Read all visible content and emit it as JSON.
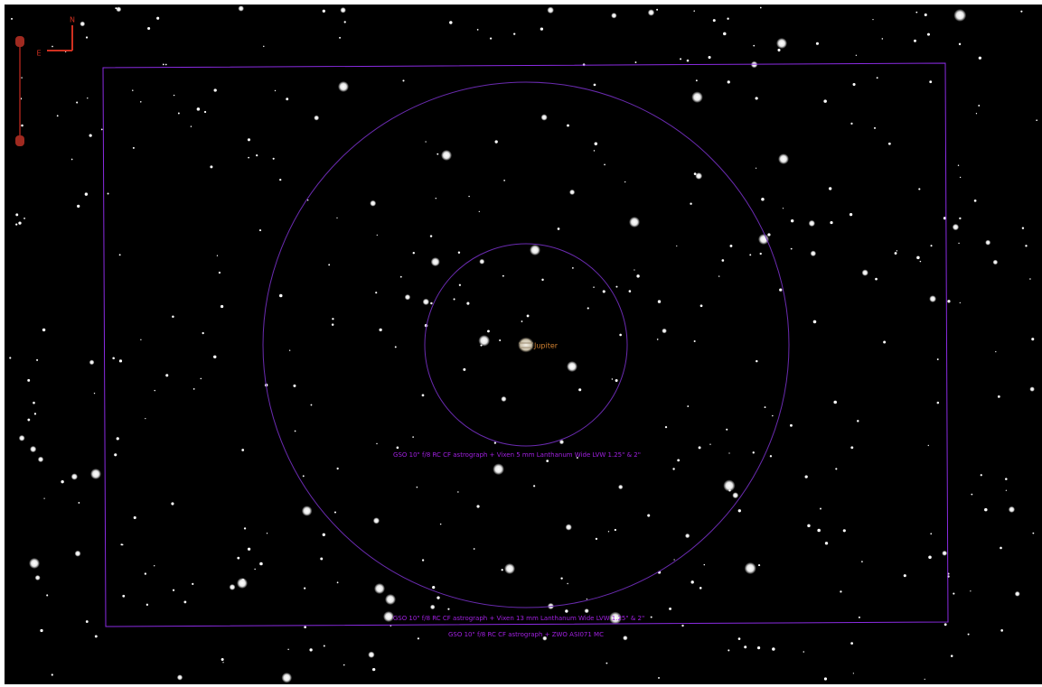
{
  "compass": {
    "north": "N",
    "east": "E"
  },
  "planet": {
    "label": "Jupiter"
  },
  "fov_labels": [
    "GSO 10\" f/8 RC CF astrograph + Vixen 5 mm Lanthanum Wide LVW 1.25\" & 2\"",
    "GSO 10\" f/8 RC CF astrograph + Vixen 13 mm Lanthanum Wide LVW 1.25\" & 2\"",
    "GSO 10\" f/8 RC CF astrograph + ZWO ASI071 MC"
  ]
}
